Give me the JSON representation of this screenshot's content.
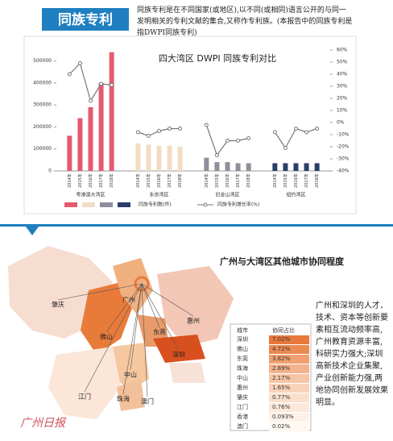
{
  "header": {
    "banner": "同族专利",
    "text": "同族专利是在不同国家(或地区),以不同(或相同)语言公开的与同一发明相关的专利文献的集合,又称作专利族。(本报告中的同族专利是指DWPI同族专利)"
  },
  "chart_data": {
    "type": "bar",
    "title": "四大湾区 DWPI 同族专利对比",
    "categories": [
      "2014年",
      "2015年",
      "2016年",
      "2017年",
      "2018年"
    ],
    "series": [
      {
        "name": "粤港澳大湾区",
        "color": "#e65a6e",
        "values": [
          160000,
          240000,
          290000,
          400000,
          540000
        ],
        "growth": [
          40,
          49,
          18,
          32,
          31
        ]
      },
      {
        "name": "东京湾区",
        "color": "#f2dcc4",
        "values": [
          125000,
          120000,
          115000,
          115000,
          110000
        ],
        "growth": [
          -8,
          -11,
          -7,
          -5,
          -5
        ]
      },
      {
        "name": "旧金山湾区",
        "color": "#8e8f9c",
        "values": [
          60000,
          40000,
          40000,
          35000,
          35000
        ],
        "growth": [
          -2,
          -27,
          -15,
          -15,
          -13
        ]
      },
      {
        "name": "纽约湾区",
        "color": "#2b3d6b",
        "values": [
          35000,
          35000,
          35000,
          35000,
          35000
        ],
        "growth": [
          -8,
          -21,
          -5,
          -8,
          -5
        ]
      }
    ],
    "bar_label": "同族专利数(件)",
    "line_label": "同族专利增长率(%)",
    "line_color": "#777",
    "ylim": [
      0,
      550000
    ],
    "yticks": [
      0,
      100000,
      200000,
      300000,
      400000,
      500000
    ],
    "y2lim": [
      -40,
      60
    ],
    "y2ticks": [
      {
        "value": 60,
        "label": "60%"
      },
      {
        "value": 50,
        "label": "50%"
      },
      {
        "value": 40,
        "label": "40%"
      },
      {
        "value": 30,
        "label": "30%"
      },
      {
        "value": 20,
        "label": "20%"
      },
      {
        "value": 10,
        "label": "10%"
      },
      {
        "value": 0,
        "label": "0%"
      },
      {
        "value": -10,
        "label": "-10%"
      },
      {
        "value": -20,
        "label": "-20%"
      },
      {
        "value": -30,
        "label": "-30%"
      },
      {
        "value": -40,
        "label": "-40%"
      }
    ],
    "grid": false
  },
  "map": {
    "title": "广州与大湾区其他城市协同程度",
    "cities": [
      "肇庆",
      "广州",
      "佛山",
      "东莞",
      "惠州",
      "深圳",
      "中山",
      "江门",
      "珠海",
      "澳门"
    ],
    "table": {
      "header": [
        "城市",
        "协同占比"
      ],
      "rows": [
        [
          "深圳",
          "7.02%"
        ],
        [
          "佛山",
          "4.72%"
        ],
        [
          "东莞",
          "3.82%"
        ],
        [
          "珠海",
          "2.89%"
        ],
        [
          "中山",
          "2.17%"
        ],
        [
          "惠州",
          "1.65%"
        ],
        [
          "肇庆",
          "0.77%"
        ],
        [
          "江门",
          "0.76%"
        ],
        [
          "香港",
          "0.093%"
        ],
        [
          "澳门",
          "0.02%"
        ]
      ]
    },
    "text": "广州和深圳的人才、技术、资本等创新要素相互流动频率高,广州教育资源丰富,科研实力强大;深圳高新技术企业集聚,产业创新能力强,两地协同创新发展效果明显。"
  },
  "watermark": "广州日报"
}
